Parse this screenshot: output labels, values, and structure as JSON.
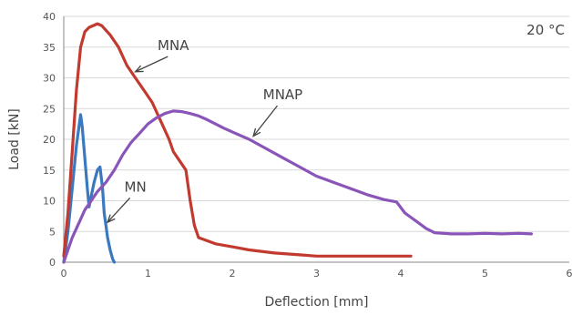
{
  "chart_data": {
    "type": "line",
    "xlabel": "Deflection [mm]",
    "ylabel": "Load [kN]",
    "xlim": [
      0,
      6
    ],
    "ylim": [
      0,
      40
    ],
    "xticks": [
      0,
      1,
      2,
      3,
      4,
      5,
      6
    ],
    "yticks": [
      0,
      5,
      10,
      15,
      20,
      25,
      30,
      35,
      40
    ],
    "grid": "horizontal",
    "legend": "none",
    "temperature_label": "20 °C",
    "colors": {
      "MN": "#3a78c0",
      "MNA": "#c23a2f",
      "MNAP": "#8a55b8",
      "grid": "#d9d9d9",
      "axis": "#888888"
    },
    "series": [
      {
        "name": "MN",
        "x": [
          0,
          0.05,
          0.1,
          0.15,
          0.2,
          0.22,
          0.25,
          0.28,
          0.3,
          0.33,
          0.36,
          0.4,
          0.43,
          0.46,
          0.48,
          0.5,
          0.52,
          0.55,
          0.58,
          0.6
        ],
        "y": [
          0,
          5,
          12,
          19,
          24,
          22,
          17,
          12,
          9,
          11,
          13,
          15,
          15.5,
          12,
          8,
          6,
          4,
          2,
          0.5,
          0
        ]
      },
      {
        "name": "MNA",
        "x": [
          0,
          0.05,
          0.1,
          0.15,
          0.2,
          0.25,
          0.3,
          0.35,
          0.4,
          0.45,
          0.55,
          0.65,
          0.75,
          0.85,
          0.95,
          1.05,
          1.15,
          1.25,
          1.3,
          1.35,
          1.45,
          1.5,
          1.55,
          1.6,
          1.7,
          1.8,
          2.0,
          2.2,
          2.5,
          2.8,
          3.0,
          3.5,
          4.0,
          4.12
        ],
        "y": [
          1,
          8,
          18,
          28,
          35,
          37.5,
          38.2,
          38.5,
          38.8,
          38.5,
          37,
          35,
          32,
          30,
          28,
          26,
          23,
          20,
          18,
          17,
          15,
          10,
          6,
          4,
          3.5,
          3,
          2.5,
          2,
          1.5,
          1.2,
          1,
          1,
          1,
          1
        ]
      },
      {
        "name": "MNAP",
        "x": [
          0,
          0.05,
          0.1,
          0.15,
          0.2,
          0.25,
          0.3,
          0.35,
          0.4,
          0.5,
          0.6,
          0.7,
          0.8,
          0.9,
          1.0,
          1.1,
          1.2,
          1.3,
          1.4,
          1.5,
          1.6,
          1.7,
          1.8,
          1.9,
          2.0,
          2.2,
          2.4,
          2.6,
          2.8,
          3.0,
          3.2,
          3.4,
          3.6,
          3.8,
          3.95,
          4.05,
          4.1,
          4.2,
          4.3,
          4.4,
          4.6,
          4.8,
          5.0,
          5.2,
          5.4,
          5.55
        ],
        "y": [
          0,
          2,
          4,
          5.5,
          7,
          8.5,
          9.5,
          10.5,
          11.5,
          13,
          15,
          17.5,
          19.5,
          21,
          22.5,
          23.5,
          24.2,
          24.6,
          24.5,
          24.2,
          23.8,
          23.2,
          22.5,
          21.8,
          21.2,
          20,
          18.5,
          17,
          15.5,
          14,
          13,
          12,
          11,
          10.2,
          9.8,
          8,
          7.5,
          6.5,
          5.5,
          4.8,
          4.6,
          4.6,
          4.7,
          4.6,
          4.7,
          4.6
        ]
      }
    ],
    "annotations": [
      {
        "text": "MNA",
        "x": 1.3,
        "y": 34.5,
        "arrow_to": [
          0.85,
          31
        ]
      },
      {
        "text": "MNAP",
        "x": 2.6,
        "y": 26.5,
        "arrow_to": [
          2.25,
          20.5
        ]
      },
      {
        "text": "MN",
        "x": 0.85,
        "y": 11.5,
        "arrow_to": [
          0.52,
          6.5
        ]
      }
    ]
  }
}
